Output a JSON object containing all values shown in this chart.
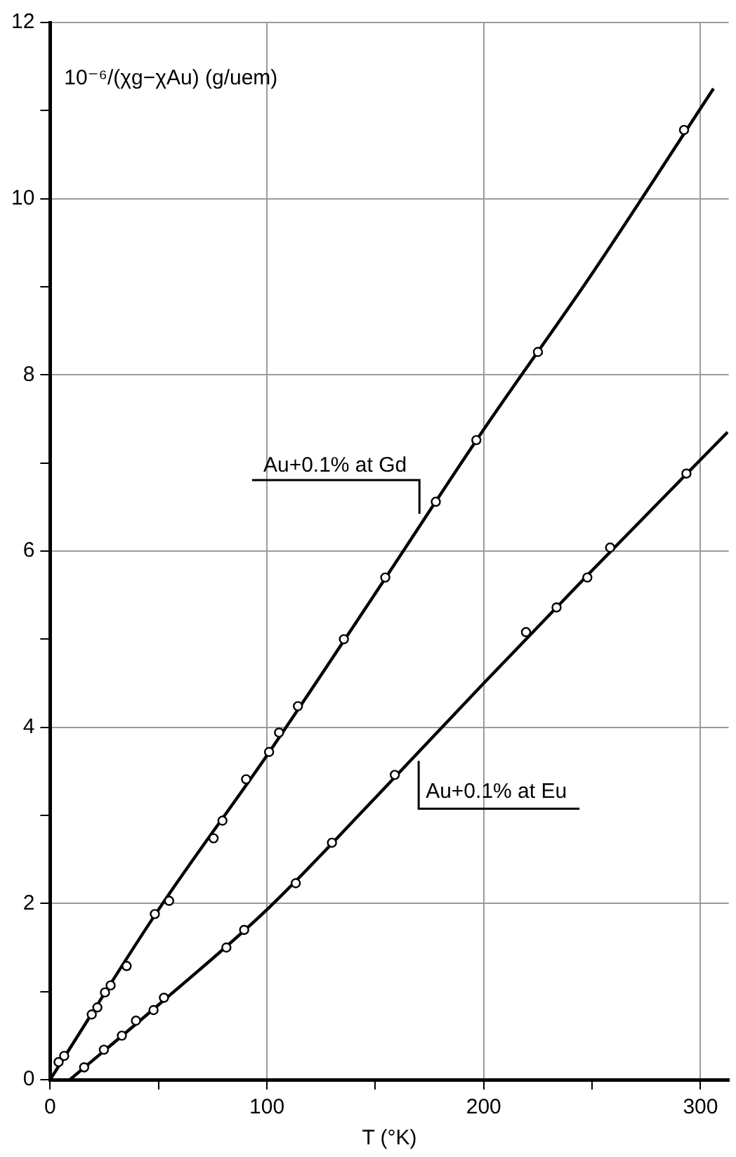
{
  "chart_data": {
    "type": "scatter",
    "xlabel": "T (°K)",
    "ylabel": "10⁻⁶/(χg−χAu) (g/uem)",
    "xlim": [
      0,
      313
    ],
    "ylim": [
      0,
      12
    ],
    "xticks": [
      0,
      {
        "value": 50,
        "label": null
      },
      100,
      {
        "value": 150,
        "label": null
      },
      200,
      {
        "value": 250,
        "label": null
      },
      300
    ],
    "yticks": [
      0,
      {
        "value": 1,
        "label": null
      },
      2,
      {
        "value": 3,
        "label": null
      },
      4,
      {
        "value": 5,
        "label": null
      },
      6,
      {
        "value": 7,
        "label": null
      },
      8,
      {
        "value": 9,
        "label": null
      },
      10,
      {
        "value": 11,
        "label": null
      },
      12
    ],
    "grid": true,
    "legend": false,
    "marker": "circle",
    "series": [
      {
        "color": "#000000",
        "x": [
          3.9,
          6.5,
          19.2,
          21.8,
          25.3,
          27.9,
          35.3,
          48.3,
          54.9,
          75.4,
          79.5,
          90.4,
          101,
          105.6,
          114.3,
          135.5,
          154.6,
          177.9,
          196.6,
          225,
          292.4
        ],
        "values": [
          0.2,
          0.27,
          0.74,
          0.82,
          0.99,
          1.07,
          1.29,
          1.88,
          2.03,
          2.74,
          2.94,
          3.41,
          3.72,
          3.94,
          4.24,
          5.0,
          5.7,
          6.56,
          7.26,
          8.26,
          10.78
        ]
      },
      {
        "type": "line",
        "marker": "none",
        "color": "#000000",
        "x": [
          0,
          50,
          100,
          150,
          200,
          250,
          306
        ],
        "values": [
          0,
          1.93,
          3.68,
          5.52,
          7.38,
          9.15,
          11.25
        ]
      },
      {
        "color": "#000000",
        "x": [
          15.7,
          24.8,
          33.1,
          39.6,
          47.7,
          52.5,
          81.3,
          89.5,
          113.3,
          130,
          159,
          219.5,
          233.6,
          247.8,
          258.3,
          293.5
        ],
        "values": [
          0.14,
          0.34,
          0.5,
          0.67,
          0.79,
          0.93,
          1.5,
          1.7,
          2.23,
          2.69,
          3.46,
          5.08,
          5.36,
          5.7,
          6.04,
          6.88
        ]
      },
      {
        "type": "line",
        "marker": "none",
        "color": "#000000",
        "x": [
          9.1,
          50,
          100,
          150,
          200,
          250,
          312.5
        ],
        "values": [
          0,
          0.85,
          1.93,
          3.2,
          4.5,
          5.78,
          7.35
        ]
      }
    ],
    "annotations": [
      {
        "text": "Au+0.1% at Gd",
        "x": 171,
        "y": 6.39
      },
      {
        "text": "Au+0.1% at Eu",
        "x": 170,
        "y": 3.65
      }
    ]
  }
}
